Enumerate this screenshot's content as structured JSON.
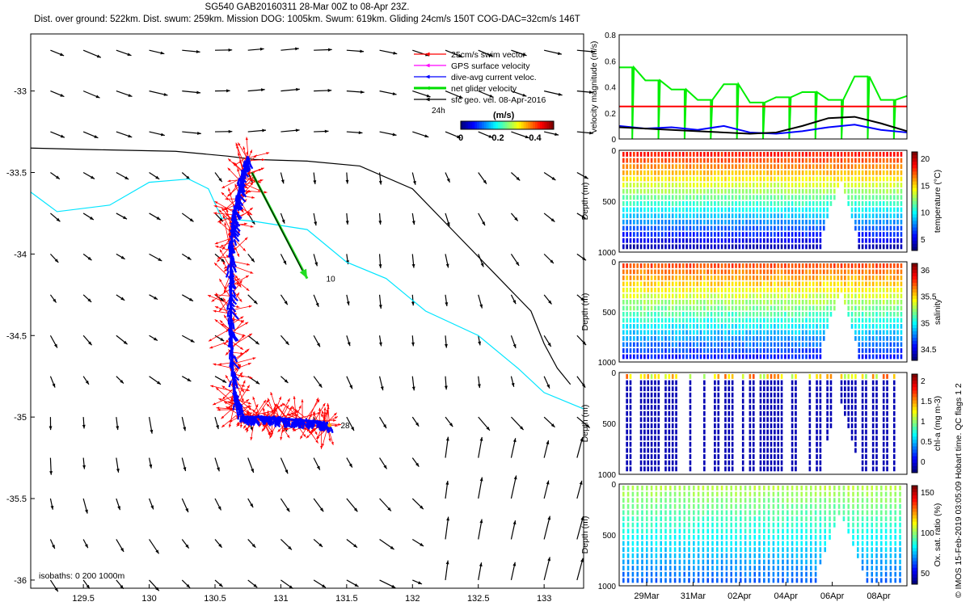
{
  "header": {
    "line1": "SG540 GAB20160311 28-Mar 00Z to 08-Apr 23Z.",
    "line2": "Dist. over ground: 522km. Dist. swum: 259km. Mission DOG: 1005km. Swum: 619km. Gliding 24cm/s 150T COG-DAC=32cm/s 146T"
  },
  "side_credit": "© IMOS 15-Feb-2019 03:05:09 Hobart time. QC flags 1  2",
  "chart_data": [
    {
      "type": "scatter",
      "subtype": "vector-map",
      "x_ticks": [
        "129.5",
        "130",
        "130.5",
        "131",
        "131.5",
        "132",
        "132.5",
        "133"
      ],
      "y_ticks": [
        "-33",
        "-33.5",
        "-34",
        "-34.5",
        "-35",
        "-35.5",
        "-36"
      ],
      "xlim": [
        129.1,
        133.3
      ],
      "ylim": [
        -36.05,
        -32.65
      ],
      "legend": [
        {
          "label": "25cm/s swim vector",
          "color": "#ff0000"
        },
        {
          "label": "GPS surface velocity",
          "color": "#ff00ff"
        },
        {
          "label": "dive-avg current veloc.",
          "color": "#0000ff"
        },
        {
          "label": "net glider velocity",
          "color": "#00dd00"
        },
        {
          "label": "sfc geo. vel. 08-Apr-2016",
          "color": "#000000"
        }
      ],
      "legend_placement": "top-right",
      "scale_label": "24h",
      "colorbar": {
        "title": "(m/s)",
        "ticks": [
          "0",
          "0.2",
          "0.4"
        ],
        "range": [
          0,
          0.5
        ]
      },
      "annotations": [
        {
          "text": "10",
          "lon": 131.32,
          "lat": -34.15
        },
        {
          "text": "28",
          "lon": 131.43,
          "lat": -35.05
        }
      ],
      "isobath_note": "isobaths: 0   200   1000m",
      "track": {
        "lon": [
          130.75,
          130.7,
          130.66,
          130.63,
          130.62,
          130.62,
          130.63,
          130.65,
          130.72,
          130.85,
          131.0,
          131.15,
          131.3,
          131.37
        ],
        "lat": [
          -33.4,
          -33.55,
          -33.7,
          -33.85,
          -34.1,
          -34.4,
          -34.65,
          -34.9,
          -35.0,
          -35.0,
          -35.01,
          -35.02,
          -35.03,
          -35.05
        ]
      },
      "net_velocity_arrow": {
        "lon": [
          130.78,
          131.2
        ],
        "lat": [
          -33.5,
          -34.15
        ]
      },
      "isobath_0m": {
        "lon": [
          129.1,
          129.6,
          130.2,
          130.6,
          130.8,
          131.2,
          131.6,
          132.0,
          132.3,
          132.6,
          132.9,
          133.0,
          133.1,
          133.2
        ],
        "lat": [
          -33.35,
          -33.36,
          -33.37,
          -33.4,
          -33.42,
          -33.43,
          -33.46,
          -33.6,
          -33.85,
          -34.1,
          -34.35,
          -34.55,
          -34.7,
          -34.8
        ]
      },
      "isobath_1000m": {
        "lon": [
          129.1,
          129.3,
          129.7,
          130.0,
          130.3,
          130.45,
          130.55,
          130.8,
          131.2,
          131.5,
          131.8,
          132.1,
          132.5,
          132.8,
          133.0,
          133.3
        ],
        "lat": [
          -33.62,
          -33.74,
          -33.7,
          -33.56,
          -33.54,
          -33.6,
          -33.78,
          -33.8,
          -33.85,
          -34.05,
          -34.15,
          -34.35,
          -34.5,
          -34.7,
          -34.85,
          -34.95
        ]
      }
    },
    {
      "type": "line",
      "ylabel": "velocity magnitude (m/s)",
      "ylim": [
        0,
        0.8
      ],
      "y_ticks": [
        "0",
        "0.2",
        "0.4",
        "0.6",
        "0.8"
      ],
      "series": [
        {
          "color": "#00ee00",
          "x": [
            0,
            1,
            2,
            3,
            4,
            5,
            6,
            7,
            8,
            9,
            10,
            11
          ],
          "values": [
            0.55,
            0.45,
            0.38,
            0.3,
            0.42,
            0.28,
            0.32,
            0.36,
            0.3,
            0.48,
            0.3,
            0.33
          ]
        },
        {
          "color": "#0000ff",
          "x": [
            0,
            1,
            2,
            3,
            4,
            5,
            6,
            7,
            8,
            9,
            10,
            11
          ],
          "values": [
            0.1,
            0.08,
            0.09,
            0.07,
            0.1,
            0.05,
            0.04,
            0.06,
            0.09,
            0.11,
            0.07,
            0.05
          ]
        },
        {
          "color": "#000000",
          "x": [
            0,
            1,
            2,
            3,
            4,
            5,
            6,
            7,
            8,
            9,
            10,
            11
          ],
          "values": [
            0.09,
            0.08,
            0.07,
            0.06,
            0.05,
            0.04,
            0.05,
            0.1,
            0.16,
            0.17,
            0.12,
            0.06
          ]
        },
        {
          "color": "#ff0000",
          "x": [
            0,
            11
          ],
          "values": [
            0.25,
            0.25
          ]
        }
      ]
    },
    {
      "type": "heatmap",
      "ylabel": "Depth (m)",
      "y_ticks": [
        "0",
        "500",
        "1000"
      ],
      "colorbar_label": "temperature (°C)",
      "colorbar_ticks": [
        "20",
        "15",
        "10",
        "5"
      ],
      "crange": [
        3,
        23
      ]
    },
    {
      "type": "heatmap",
      "ylabel": "Depth (m)",
      "y_ticks": [
        "0",
        "500",
        "1000"
      ],
      "colorbar_label": "salinity",
      "colorbar_ticks": [
        "36",
        "35.5",
        "35",
        "34.5"
      ],
      "crange": [
        34.2,
        36.2
      ]
    },
    {
      "type": "heatmap",
      "ylabel": "Depth (m)",
      "y_ticks": [
        "0",
        "500",
        "1000"
      ],
      "colorbar_label": "chl-a (mg m-3)",
      "colorbar_ticks": [
        "2",
        "1.5",
        "1",
        "0.5",
        "0"
      ],
      "crange": [
        0,
        2
      ]
    },
    {
      "type": "heatmap",
      "ylabel": "Depth (m)",
      "y_ticks": [
        "0",
        "500",
        "1000"
      ],
      "colorbar_label": "Ox. sat. ratio (%)",
      "colorbar_ticks": [
        "150",
        "100",
        "50"
      ],
      "crange": [
        25,
        175
      ]
    }
  ],
  "time_axis": {
    "ticks": [
      "29Mar",
      "31Mar",
      "02Apr",
      "04Apr",
      "06Apr",
      "08Apr"
    ]
  }
}
